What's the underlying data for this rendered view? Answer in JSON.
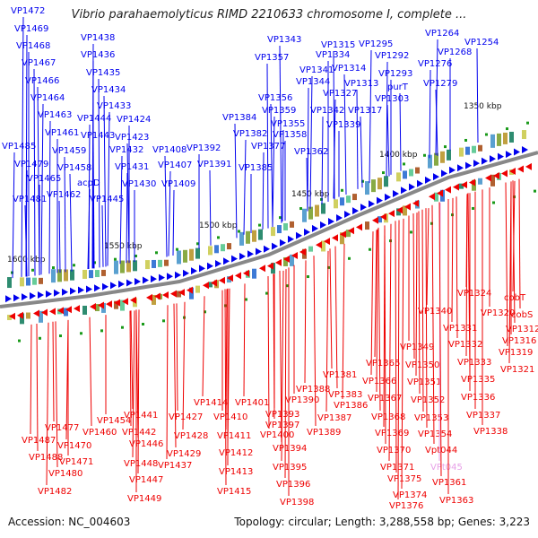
{
  "title": "Vibrio parahaemolyticus RIMD 2210633 chromosome I, complete ...",
  "footer": {
    "accession": "Accession: NC_004603",
    "info": "Topology: circular; Length: 3,288,558 bp; Genes: 3,223"
  },
  "colors": {
    "forward_strand": "#0000ee",
    "reverse_strand": "#ee0000",
    "pseudo": "#e7a0e7",
    "backbone": "#888888",
    "tick": "#1a9a1a"
  },
  "scale_labels": [
    "1350 kbp",
    "1400 kbp",
    "1450 kbp",
    "1500 kbp",
    "1550 kbp",
    "1600 kbp"
  ],
  "top_labels": [
    "VP1472",
    "VP1469",
    "VP1468",
    "VP1467",
    "VP1466",
    "VP1464",
    "VP1463",
    "VP1461",
    "VP1459",
    "VP1458",
    "VP1485",
    "VP1479",
    "VP1465",
    "VP1462",
    "VP1481",
    "acpD",
    "VP1438",
    "VP1436",
    "VP1435",
    "VP1434",
    "VP1433",
    "VP1444",
    "VP1424",
    "VP1443",
    "VP1423",
    "VP1432",
    "VP1431",
    "VP1430",
    "VP1445",
    "VP1408",
    "VP1407",
    "VP1409",
    "VP1392",
    "VP1391",
    "VP1384",
    "VP1382",
    "VP1377",
    "VP1385",
    "VP1357",
    "VP1356",
    "VP1359",
    "VP1355",
    "VP1358",
    "VP1362",
    "VP1343",
    "VP1341",
    "VP1344",
    "VP1334",
    "VP1315",
    "VP1314",
    "VP1327",
    "VP1342",
    "VP1339",
    "VP1313",
    "VP1317",
    "VP1295",
    "VP1292",
    "VP1293",
    "purT",
    "VP1303",
    "VP1264",
    "VP1276",
    "VP1268",
    "VP1254",
    "VP1279"
  ],
  "bottom_labels": [
    "cobT",
    "VP1324",
    "VP1320",
    "cobS",
    "VP1312",
    "VP1340",
    "VP1331",
    "VP1316",
    "VP1332",
    "VP1319",
    "VP1321",
    "VP1333",
    "VP1349",
    "VP1350",
    "VP1335",
    "VP1365",
    "VP1351",
    "VP1336",
    "VP1352",
    "VP1381",
    "VP1366",
    "VP1367",
    "VP1337",
    "VP1353",
    "VP1383",
    "VP1386",
    "VP1388",
    "VP1338",
    "VP1354",
    "VP1368",
    "VP1387",
    "VP1369",
    "VP1390",
    "VP1370",
    "Vpt044",
    "VP1414",
    "VP1401",
    "VP1393",
    "VP1397",
    "VP1389",
    "VP1371",
    "VPt045",
    "VP1410",
    "VP1375",
    "VP1361",
    "VP1374",
    "VP1376",
    "VP1363",
    "VP1400",
    "VP1394",
    "VP1395",
    "VP1396",
    "VP1398",
    "VP1427",
    "VP1441",
    "VP1428",
    "VP1411",
    "VP1454",
    "VP1442",
    "VP1429",
    "VP1412",
    "VP1437",
    "VP1413",
    "VP1415",
    "VP1446",
    "VP1448",
    "VP1447",
    "VP1449",
    "VP1477",
    "VP1460",
    "VP1470",
    "VP1487",
    "VP1471",
    "VP1488",
    "VP1480",
    "VP1482"
  ]
}
